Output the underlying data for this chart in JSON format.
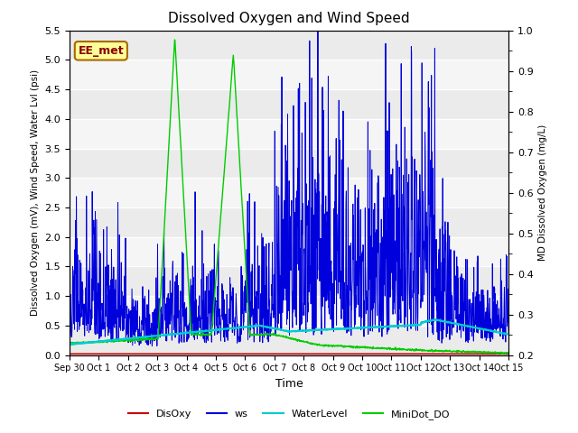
{
  "title": "Dissolved Oxygen and Wind Speed",
  "xlabel": "Time",
  "ylabel_left": "Dissolved Oxygen (mV), Wind Speed, Water Lvl (psi)",
  "ylabel_right": "MD Dissolved Oxygen (mg/L)",
  "ylim_left": [
    0.0,
    5.5
  ],
  "ylim_right": [
    0.2,
    1.0
  ],
  "annotation": "EE_met",
  "fig_bg": "#ffffff",
  "plot_bg_light": "#f0f0f0",
  "plot_bg_dark": "#e0e0e0",
  "color_disoxy": "#cc0000",
  "color_ws": "#0000dd",
  "color_water": "#00cccc",
  "color_minidot": "#00cc00",
  "legend_labels": [
    "DisOxy",
    "ws",
    "WaterLevel",
    "MiniDot_DO"
  ],
  "x_tick_labels": [
    "Sep 30",
    "Oct 1",
    "Oct 2",
    "Oct 3",
    "Oct 4",
    "Oct 5",
    "Oct 6",
    "Oct 7",
    "Oct 8",
    "Oct 9",
    "Oct 10",
    "Oct 11",
    "Oct 12",
    "Oct 13",
    "Oct 14",
    "Oct 15"
  ],
  "x_tick_positions": [
    0,
    1,
    2,
    3,
    4,
    5,
    6,
    7,
    8,
    9,
    10,
    11,
    12,
    13,
    14,
    15
  ]
}
